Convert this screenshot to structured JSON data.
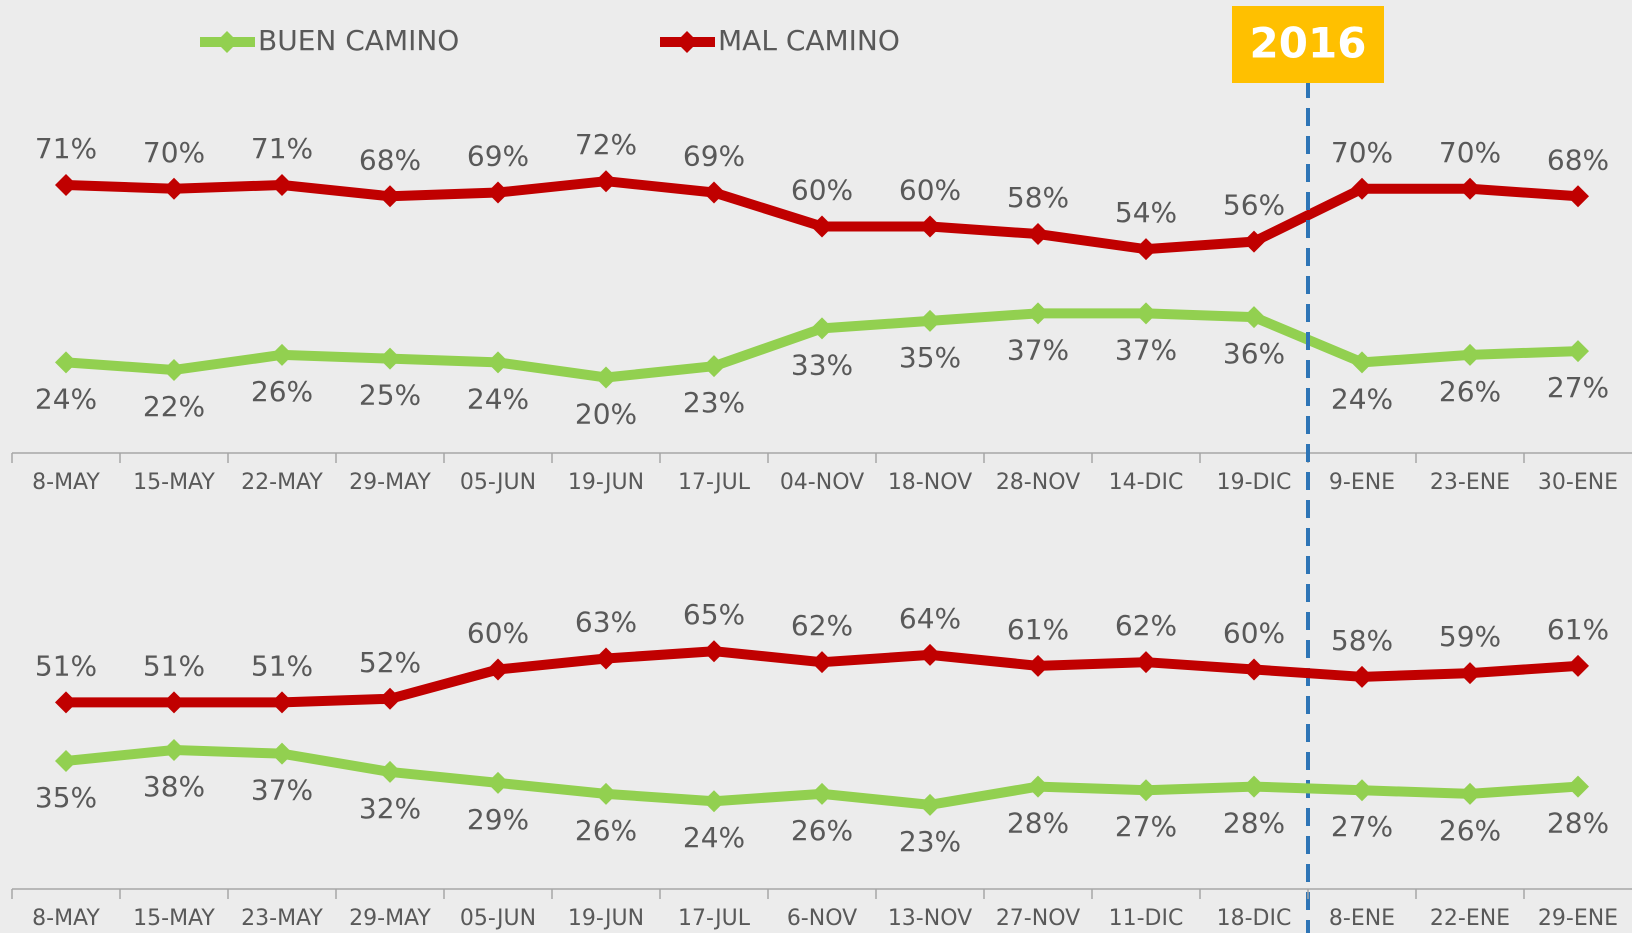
{
  "chart_data": [
    {
      "type": "line",
      "annotation": "2016",
      "legend": "top",
      "categories": [
        "8-MAY",
        "15-MAY",
        "22-MAY",
        "29-MAY",
        "05-JUN",
        "19-JUN",
        "17-JUL",
        "04-NOV",
        "18-NOV",
        "28-NOV",
        "14-DIC",
        "19-DIC",
        "9-ENE",
        "23-ENE",
        "30-ENE"
      ],
      "ylim": [
        0,
        120
      ],
      "series": [
        {
          "name": "BUEN CAMINO",
          "color": "#92d050",
          "values": [
            24,
            22,
            26,
            25,
            24,
            20,
            23,
            33,
            35,
            37,
            37,
            36,
            24,
            26,
            27
          ],
          "value_labels": [
            "24%",
            "22%",
            "26%",
            "25%",
            "24%",
            "20%",
            "23%",
            "33%",
            "35%",
            "37%",
            "37%",
            "36%",
            "24%",
            "26%",
            "27%"
          ]
        },
        {
          "name": "MAL CAMINO",
          "color": "#c00000",
          "values": [
            71,
            70,
            71,
            68,
            69,
            72,
            69,
            60,
            60,
            58,
            54,
            56,
            70,
            70,
            68
          ],
          "value_labels": [
            "71%",
            "70%",
            "71%",
            "68%",
            "69%",
            "72%",
            "69%",
            "60%",
            "60%",
            "58%",
            "54%",
            "56%",
            "70%",
            "70%",
            "68%"
          ]
        }
      ]
    },
    {
      "type": "line",
      "categories": [
        "8-MAY",
        "15-MAY",
        "23-MAY",
        "29-MAY",
        "05-JUN",
        "19-JUN",
        "17-JUL",
        "6-NOV",
        "13-NOV",
        "27-NOV",
        "11-DIC",
        "18-DIC",
        "8-ENE",
        "22-ENE",
        "29-ENE"
      ],
      "ylim": [
        0,
        120
      ],
      "series": [
        {
          "color": "#92d050",
          "values": [
            35,
            38,
            37,
            32,
            29,
            26,
            24,
            26,
            23,
            28,
            27,
            28,
            27,
            26,
            28
          ],
          "value_labels": [
            "35%",
            "38%",
            "37%",
            "32%",
            "29%",
            "26%",
            "24%",
            "26%",
            "23%",
            "28%",
            "27%",
            "28%",
            "27%",
            "26%",
            "28%"
          ]
        },
        {
          "color": "#c00000",
          "values": [
            51,
            51,
            51,
            52,
            60,
            63,
            65,
            62,
            64,
            61,
            62,
            60,
            58,
            59,
            61
          ],
          "value_labels": [
            "51%",
            "51%",
            "51%",
            "52%",
            "60%",
            "63%",
            "65%",
            "62%",
            "64%",
            "61%",
            "62%",
            "60%",
            "58%",
            "59%",
            "61%"
          ]
        }
      ]
    }
  ]
}
